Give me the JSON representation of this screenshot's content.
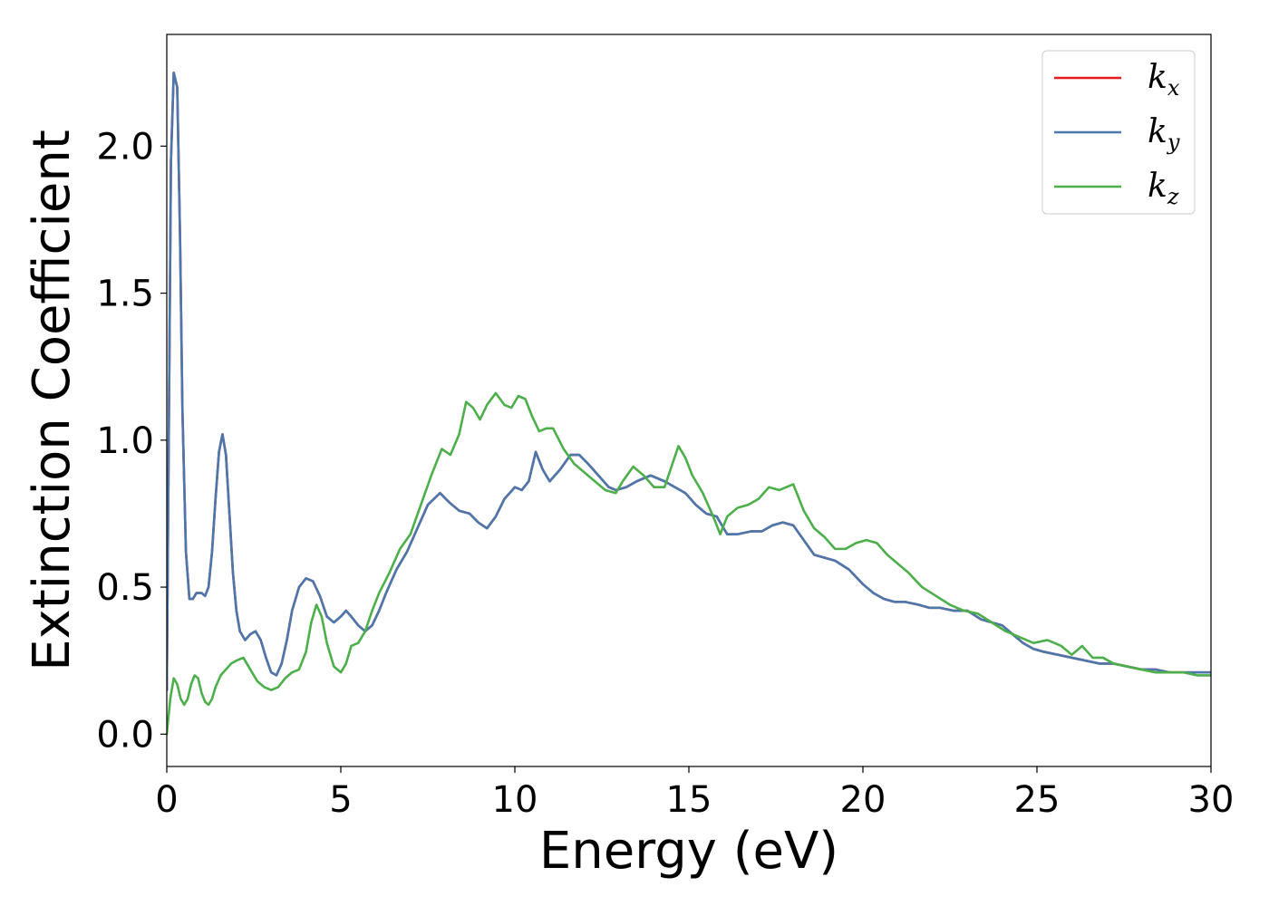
{
  "chart_data": {
    "type": "line",
    "xlabel": "Energy (eV)",
    "ylabel": "Extinction Coefficient",
    "xlim": [
      0,
      30
    ],
    "ylim": [
      -0.11,
      2.38
    ],
    "xticks": [
      0,
      5,
      10,
      15,
      20,
      25,
      30
    ],
    "xtick_labels": [
      "0",
      "5",
      "10",
      "15",
      "20",
      "25",
      "30"
    ],
    "yticks": [
      0.0,
      0.5,
      1.0,
      1.5,
      2.0
    ],
    "ytick_labels": [
      "0.0",
      "0.5",
      "1.0",
      "1.5",
      "2.0"
    ],
    "grid": false,
    "legend": {
      "placement": "top-right",
      "entries": [
        {
          "base": "k",
          "sub": "x",
          "color": "#e41a1c"
        },
        {
          "base": "k",
          "sub": "y",
          "color": "#4a78ad"
        },
        {
          "base": "k",
          "sub": "z",
          "color": "#4daf4a"
        }
      ]
    },
    "series": [
      {
        "color": "#e41a1c",
        "x": [
          0,
          0.05,
          0.12,
          0.2,
          0.3,
          0.38,
          0.45,
          0.55,
          0.65,
          0.75,
          0.85,
          1.0,
          1.1,
          1.2,
          1.3,
          1.4,
          1.5,
          1.6,
          1.7,
          1.8,
          1.9,
          2.0,
          2.1,
          2.25,
          2.4,
          2.55,
          2.7,
          2.85,
          3.0,
          3.15,
          3.3,
          3.45,
          3.6,
          3.8,
          4.0,
          4.2,
          4.4,
          4.6,
          4.8,
          5.0,
          5.15,
          5.3,
          5.5,
          5.7,
          5.9,
          6.1,
          6.3,
          6.6,
          6.9,
          7.2,
          7.5,
          7.85,
          8.1,
          8.4,
          8.7,
          8.95,
          9.2,
          9.45,
          9.7,
          10.0,
          10.2,
          10.4,
          10.6,
          10.8,
          11.0,
          11.3,
          11.6,
          11.85,
          12.1,
          12.4,
          12.7,
          12.9,
          13.2,
          13.5,
          13.9,
          14.3,
          14.6,
          14.9,
          15.2,
          15.5,
          15.8,
          16.1,
          16.4,
          16.8,
          17.1,
          17.4,
          17.7,
          18.0,
          18.3,
          18.6,
          18.9,
          19.2,
          19.6,
          20.0,
          20.3,
          20.6,
          20.9,
          21.2,
          21.6,
          21.9,
          22.2,
          22.6,
          23.0,
          23.4,
          23.7,
          24.0,
          24.3,
          24.6,
          24.9,
          25.2,
          25.6,
          26.0,
          26.4,
          26.8,
          27.2,
          27.6,
          28.0,
          28.4,
          28.8,
          29.2,
          29.6,
          30.0
        ],
        "values": [
          0.15,
          0.9,
          1.95,
          2.25,
          2.2,
          1.7,
          1.1,
          0.62,
          0.46,
          0.46,
          0.48,
          0.48,
          0.47,
          0.5,
          0.62,
          0.8,
          0.96,
          1.02,
          0.95,
          0.75,
          0.55,
          0.42,
          0.35,
          0.32,
          0.34,
          0.35,
          0.32,
          0.26,
          0.21,
          0.2,
          0.24,
          0.32,
          0.42,
          0.5,
          0.53,
          0.52,
          0.47,
          0.4,
          0.38,
          0.4,
          0.42,
          0.4,
          0.37,
          0.35,
          0.37,
          0.42,
          0.48,
          0.56,
          0.62,
          0.7,
          0.78,
          0.82,
          0.79,
          0.76,
          0.75,
          0.72,
          0.7,
          0.74,
          0.8,
          0.84,
          0.83,
          0.86,
          0.96,
          0.9,
          0.86,
          0.9,
          0.95,
          0.95,
          0.92,
          0.88,
          0.84,
          0.83,
          0.84,
          0.86,
          0.88,
          0.86,
          0.84,
          0.82,
          0.78,
          0.75,
          0.74,
          0.68,
          0.68,
          0.69,
          0.69,
          0.71,
          0.72,
          0.71,
          0.66,
          0.61,
          0.6,
          0.59,
          0.56,
          0.51,
          0.48,
          0.46,
          0.45,
          0.45,
          0.44,
          0.43,
          0.43,
          0.42,
          0.42,
          0.39,
          0.38,
          0.37,
          0.34,
          0.31,
          0.29,
          0.28,
          0.27,
          0.26,
          0.25,
          0.24,
          0.24,
          0.23,
          0.22,
          0.22,
          0.21,
          0.21,
          0.21,
          0.21
        ]
      },
      {
        "color": "#4a78ad",
        "x": [
          0,
          0.05,
          0.12,
          0.2,
          0.3,
          0.38,
          0.45,
          0.55,
          0.65,
          0.75,
          0.85,
          1.0,
          1.1,
          1.2,
          1.3,
          1.4,
          1.5,
          1.6,
          1.7,
          1.8,
          1.9,
          2.0,
          2.1,
          2.25,
          2.4,
          2.55,
          2.7,
          2.85,
          3.0,
          3.15,
          3.3,
          3.45,
          3.6,
          3.8,
          4.0,
          4.2,
          4.4,
          4.6,
          4.8,
          5.0,
          5.15,
          5.3,
          5.5,
          5.7,
          5.9,
          6.1,
          6.3,
          6.6,
          6.9,
          7.2,
          7.5,
          7.85,
          8.1,
          8.4,
          8.7,
          8.95,
          9.2,
          9.45,
          9.7,
          10.0,
          10.2,
          10.4,
          10.6,
          10.8,
          11.0,
          11.3,
          11.6,
          11.85,
          12.1,
          12.4,
          12.7,
          12.9,
          13.2,
          13.5,
          13.9,
          14.3,
          14.6,
          14.9,
          15.2,
          15.5,
          15.8,
          16.1,
          16.4,
          16.8,
          17.1,
          17.4,
          17.7,
          18.0,
          18.3,
          18.6,
          18.9,
          19.2,
          19.6,
          20.0,
          20.3,
          20.6,
          20.9,
          21.2,
          21.6,
          21.9,
          22.2,
          22.6,
          23.0,
          23.4,
          23.7,
          24.0,
          24.3,
          24.6,
          24.9,
          25.2,
          25.6,
          26.0,
          26.4,
          26.8,
          27.2,
          27.6,
          28.0,
          28.4,
          28.8,
          29.2,
          29.6,
          30.0
        ],
        "values": [
          0.15,
          0.9,
          1.95,
          2.25,
          2.2,
          1.7,
          1.1,
          0.62,
          0.46,
          0.46,
          0.48,
          0.48,
          0.47,
          0.5,
          0.62,
          0.8,
          0.96,
          1.02,
          0.95,
          0.75,
          0.55,
          0.42,
          0.35,
          0.32,
          0.34,
          0.35,
          0.32,
          0.26,
          0.21,
          0.2,
          0.24,
          0.32,
          0.42,
          0.5,
          0.53,
          0.52,
          0.47,
          0.4,
          0.38,
          0.4,
          0.42,
          0.4,
          0.37,
          0.35,
          0.37,
          0.42,
          0.48,
          0.56,
          0.62,
          0.7,
          0.78,
          0.82,
          0.79,
          0.76,
          0.75,
          0.72,
          0.7,
          0.74,
          0.8,
          0.84,
          0.83,
          0.86,
          0.96,
          0.9,
          0.86,
          0.9,
          0.95,
          0.95,
          0.92,
          0.88,
          0.84,
          0.83,
          0.84,
          0.86,
          0.88,
          0.86,
          0.84,
          0.82,
          0.78,
          0.75,
          0.74,
          0.68,
          0.68,
          0.69,
          0.69,
          0.71,
          0.72,
          0.71,
          0.66,
          0.61,
          0.6,
          0.59,
          0.56,
          0.51,
          0.48,
          0.46,
          0.45,
          0.45,
          0.44,
          0.43,
          0.43,
          0.42,
          0.42,
          0.39,
          0.38,
          0.37,
          0.34,
          0.31,
          0.29,
          0.28,
          0.27,
          0.26,
          0.25,
          0.24,
          0.24,
          0.23,
          0.22,
          0.22,
          0.21,
          0.21,
          0.21,
          0.21
        ]
      },
      {
        "color": "#4daf4a",
        "x": [
          0,
          0.1,
          0.2,
          0.3,
          0.4,
          0.5,
          0.6,
          0.7,
          0.8,
          0.9,
          1.0,
          1.1,
          1.2,
          1.3,
          1.4,
          1.55,
          1.7,
          1.85,
          2.0,
          2.2,
          2.4,
          2.6,
          2.8,
          3.0,
          3.2,
          3.4,
          3.6,
          3.8,
          4.0,
          4.15,
          4.3,
          4.45,
          4.6,
          4.8,
          5.0,
          5.15,
          5.3,
          5.5,
          5.7,
          5.9,
          6.1,
          6.4,
          6.7,
          7.0,
          7.3,
          7.6,
          7.9,
          8.15,
          8.4,
          8.6,
          8.8,
          9.0,
          9.2,
          9.45,
          9.7,
          9.9,
          10.1,
          10.3,
          10.5,
          10.7,
          10.9,
          11.1,
          11.4,
          11.7,
          12.0,
          12.3,
          12.6,
          12.9,
          13.1,
          13.4,
          13.7,
          14.0,
          14.3,
          14.5,
          14.7,
          14.9,
          15.1,
          15.4,
          15.7,
          15.9,
          16.1,
          16.4,
          16.7,
          17.0,
          17.3,
          17.6,
          17.8,
          18.0,
          18.3,
          18.6,
          18.9,
          19.2,
          19.5,
          19.8,
          20.1,
          20.4,
          20.7,
          21.0,
          21.3,
          21.7,
          22.1,
          22.5,
          22.9,
          23.3,
          23.7,
          24.1,
          24.5,
          24.9,
          25.3,
          25.7,
          26.0,
          26.3,
          26.6,
          26.9,
          27.2,
          27.6,
          28.0,
          28.4,
          28.8,
          29.2,
          29.6,
          30.0
        ],
        "values": [
          0.0,
          0.12,
          0.19,
          0.17,
          0.12,
          0.1,
          0.12,
          0.17,
          0.2,
          0.19,
          0.14,
          0.11,
          0.1,
          0.12,
          0.16,
          0.2,
          0.22,
          0.24,
          0.25,
          0.26,
          0.22,
          0.18,
          0.16,
          0.15,
          0.16,
          0.19,
          0.21,
          0.22,
          0.28,
          0.38,
          0.44,
          0.4,
          0.31,
          0.23,
          0.21,
          0.24,
          0.3,
          0.31,
          0.35,
          0.42,
          0.48,
          0.55,
          0.63,
          0.68,
          0.78,
          0.88,
          0.97,
          0.95,
          1.02,
          1.13,
          1.11,
          1.07,
          1.12,
          1.16,
          1.12,
          1.11,
          1.15,
          1.14,
          1.08,
          1.03,
          1.04,
          1.04,
          0.97,
          0.92,
          0.89,
          0.86,
          0.83,
          0.82,
          0.86,
          0.91,
          0.88,
          0.84,
          0.84,
          0.91,
          0.98,
          0.94,
          0.88,
          0.82,
          0.74,
          0.68,
          0.74,
          0.77,
          0.78,
          0.8,
          0.84,
          0.83,
          0.84,
          0.85,
          0.76,
          0.7,
          0.67,
          0.63,
          0.63,
          0.65,
          0.66,
          0.65,
          0.61,
          0.58,
          0.55,
          0.5,
          0.47,
          0.44,
          0.42,
          0.41,
          0.38,
          0.35,
          0.33,
          0.31,
          0.32,
          0.3,
          0.27,
          0.3,
          0.26,
          0.26,
          0.24,
          0.23,
          0.22,
          0.21,
          0.21,
          0.21,
          0.2,
          0.2
        ]
      }
    ]
  }
}
